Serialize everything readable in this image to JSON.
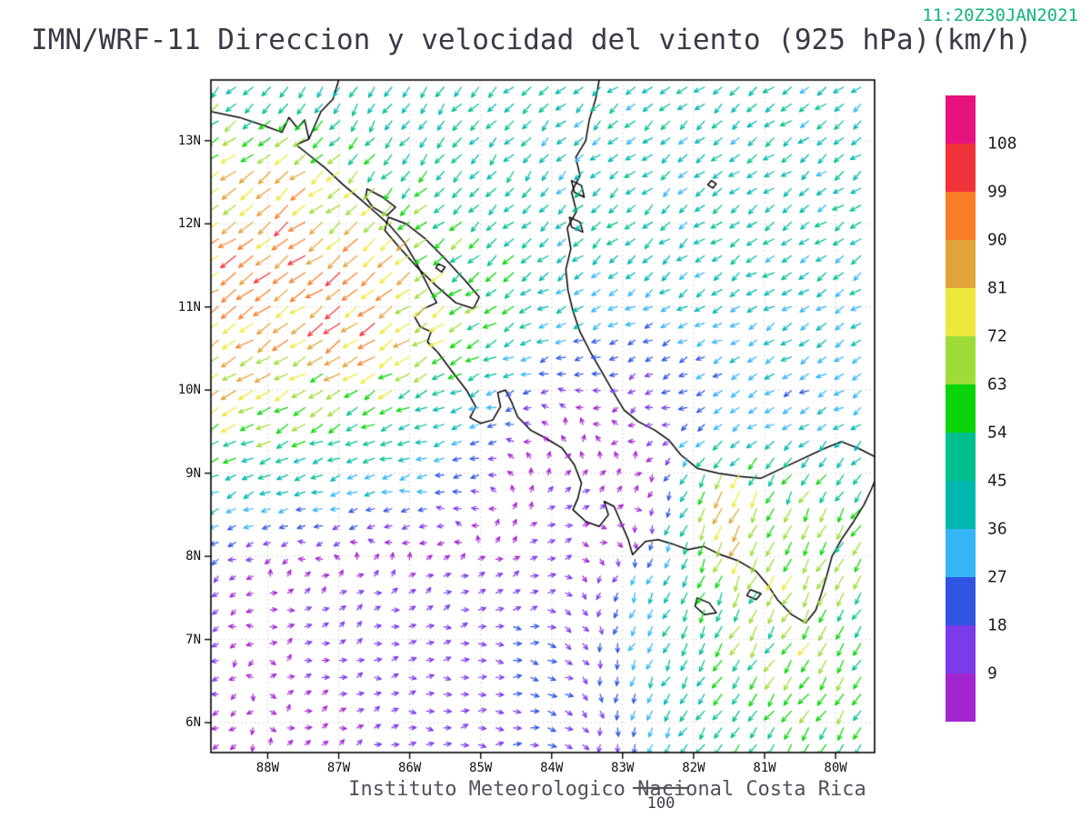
{
  "header": {
    "timestamp": "11:20Z30JAN2021",
    "title": "IMN/WRF-11 Direccion y velocidad del viento (925 hPa)(km/h)"
  },
  "footer": {
    "caption": "Instituto Meteorologico Nacional Costa Rica",
    "reference_label": "100"
  },
  "colors": {
    "timestamp": "#14b37d",
    "title": "#3a3a46",
    "caption": "#51515c",
    "axis_text": "#111111",
    "colorbar_text": "#1c1c1c",
    "reference_text": "#3d3d46",
    "coastline": "#000000",
    "grid_dots": "#c0c0ca",
    "frame": "#000000"
  },
  "chart_data": {
    "type": "vector-field-map",
    "title": "IMN/WRF-11 Direccion y velocidad del viento (925 hPa)(km/h)",
    "timestamp": "11:20Z30JAN2021",
    "level": "925 hPa",
    "units": "km/h",
    "caption": "Instituto Meteorologico Nacional Costa Rica",
    "reference_vector": 100,
    "lon_range": [
      -88.8,
      -79.45
    ],
    "lat_range": [
      5.64,
      13.73
    ],
    "lat_ticks": [
      {
        "label": "13N",
        "value": 13
      },
      {
        "label": "12N",
        "value": 12
      },
      {
        "label": "11N",
        "value": 11
      },
      {
        "label": "10N",
        "value": 10
      },
      {
        "label": "9N",
        "value": 9
      },
      {
        "label": "8N",
        "value": 8
      },
      {
        "label": "7N",
        "value": 7
      },
      {
        "label": "6N",
        "value": 6
      }
    ],
    "lon_ticks": [
      {
        "label": "88W",
        "value": -88
      },
      {
        "label": "87W",
        "value": -87
      },
      {
        "label": "86W",
        "value": -86
      },
      {
        "label": "85W",
        "value": -85
      },
      {
        "label": "84W",
        "value": -84
      },
      {
        "label": "83W",
        "value": -83
      },
      {
        "label": "82W",
        "value": -82
      },
      {
        "label": "81W",
        "value": -81
      },
      {
        "label": "80W",
        "value": -80
      }
    ],
    "colorbar": {
      "labels": [
        108,
        99,
        90,
        81,
        72,
        63,
        54,
        45,
        36,
        27,
        18,
        9
      ],
      "segment_colors_low_to_high": [
        "#a226cf",
        "#7b3be8",
        "#2f55e0",
        "#35b5f5",
        "#00b7ad",
        "#00bf8e",
        "#0ad40a",
        "#9edc3a",
        "#ece93c",
        "#e2a33a",
        "#fa7d28",
        "#f0333a",
        "#e6137e"
      ],
      "bin_width": 9
    },
    "wind_grid": {
      "comment_units": "u,v in km/h, u positive east, v positive north",
      "lons": [
        -88.8,
        -87.6,
        -86.4,
        -85.2,
        -84.0,
        -82.8,
        -81.6,
        -80.4,
        -79.4
      ],
      "lats": [
        13.7,
        12.7,
        11.7,
        10.7,
        9.7,
        8.7,
        7.7,
        6.7,
        5.7
      ],
      "uv": [
        [
          [
            -35,
            -34
          ],
          [
            -20,
            -35
          ],
          [
            -20,
            -38
          ],
          [
            -30,
            -32
          ],
          [
            -30,
            -28
          ],
          [
            -32,
            -26
          ],
          [
            -33,
            -25
          ],
          [
            -34,
            -24
          ],
          [
            -34,
            -24
          ]
        ],
        [
          [
            -55,
            -42
          ],
          [
            -60,
            -46
          ],
          [
            -36,
            -40
          ],
          [
            -28,
            -35
          ],
          [
            -28,
            -30
          ],
          [
            -30,
            -26
          ],
          [
            -32,
            -25
          ],
          [
            -33,
            -24
          ],
          [
            -34,
            -24
          ]
        ],
        [
          [
            -70,
            -50
          ],
          [
            -75,
            -55
          ],
          [
            -65,
            -50
          ],
          [
            -45,
            -35
          ],
          [
            -30,
            -28
          ],
          [
            -32,
            -26
          ],
          [
            -33,
            -25
          ],
          [
            -34,
            -24
          ],
          [
            -34,
            -24
          ]
        ],
        [
          [
            -65,
            -45
          ],
          [
            -72,
            -50
          ],
          [
            -75,
            -52
          ],
          [
            -55,
            -35
          ],
          [
            -35,
            -16
          ],
          [
            -20,
            -10
          ],
          [
            -28,
            -15
          ],
          [
            -32,
            -18
          ],
          [
            -33,
            -20
          ]
        ],
        [
          [
            -60,
            -35
          ],
          [
            -55,
            -30
          ],
          [
            -48,
            -25
          ],
          [
            -35,
            -12
          ],
          [
            -5,
            6
          ],
          [
            -8,
            -4
          ],
          [
            -25,
            -12
          ],
          [
            -25,
            -15
          ],
          [
            -30,
            -18
          ]
        ],
        [
          [
            -35,
            -15
          ],
          [
            -32,
            -10
          ],
          [
            -30,
            -5
          ],
          [
            -18,
            0
          ],
          [
            10,
            8
          ],
          [
            8,
            6
          ],
          [
            -35,
            -75
          ],
          [
            -30,
            -50
          ],
          [
            -30,
            -45
          ]
        ],
        [
          [
            -12,
            -8
          ],
          [
            8,
            5
          ],
          [
            10,
            6
          ],
          [
            12,
            4
          ],
          [
            14,
            4
          ],
          [
            -12,
            -25
          ],
          [
            -25,
            -55
          ],
          [
            -30,
            -60
          ],
          [
            -28,
            -48
          ]
        ],
        [
          [
            -10,
            -6
          ],
          [
            8,
            4
          ],
          [
            12,
            3
          ],
          [
            15,
            2
          ],
          [
            22,
            -5
          ],
          [
            -15,
            -30
          ],
          [
            -30,
            -45
          ],
          [
            -35,
            -50
          ],
          [
            -30,
            -42
          ]
        ],
        [
          [
            -8,
            -5
          ],
          [
            5,
            3
          ],
          [
            10,
            2
          ],
          [
            14,
            0
          ],
          [
            20,
            -4
          ],
          [
            -12,
            -25
          ],
          [
            -28,
            -40
          ],
          [
            -32,
            -45
          ],
          [
            -30,
            -40
          ]
        ]
      ]
    },
    "coast_paths": [
      [
        [
          -88.8,
          13.35
        ],
        [
          -88.4,
          13.28
        ],
        [
          -88.05,
          13.18
        ],
        [
          -87.8,
          13.1
        ],
        [
          -87.7,
          13.28
        ],
        [
          -87.58,
          13.15
        ],
        [
          -87.48,
          13.25
        ],
        [
          -87.42,
          13.02
        ],
        [
          -87.6,
          12.95
        ],
        [
          -87.45,
          12.85
        ],
        [
          -87.2,
          12.68
        ],
        [
          -86.95,
          12.48
        ],
        [
          -86.7,
          12.3
        ],
        [
          -86.5,
          12.15
        ],
        [
          -86.28,
          11.98
        ],
        [
          -86.08,
          11.78
        ],
        [
          -85.92,
          11.55
        ],
        [
          -85.8,
          11.35
        ],
        [
          -85.68,
          11.15
        ],
        [
          -85.62,
          11.05
        ],
        [
          -85.8,
          10.98
        ],
        [
          -85.93,
          10.88
        ],
        [
          -85.85,
          10.76
        ],
        [
          -85.7,
          10.7
        ],
        [
          -85.75,
          10.58
        ],
        [
          -85.6,
          10.45
        ],
        [
          -85.4,
          10.22
        ],
        [
          -85.2,
          10.0
        ],
        [
          -85.07,
          9.8
        ],
        [
          -85.15,
          9.67
        ],
        [
          -85.0,
          9.6
        ],
        [
          -84.83,
          9.64
        ],
        [
          -84.72,
          9.8
        ],
        [
          -84.76,
          9.97
        ],
        [
          -84.65,
          10.0
        ],
        [
          -84.56,
          9.85
        ],
        [
          -84.48,
          9.68
        ],
        [
          -84.3,
          9.52
        ],
        [
          -84.08,
          9.42
        ],
        [
          -83.85,
          9.3
        ],
        [
          -83.68,
          9.1
        ],
        [
          -83.58,
          8.88
        ],
        [
          -83.63,
          8.7
        ],
        [
          -83.7,
          8.56
        ],
        [
          -83.52,
          8.42
        ],
        [
          -83.33,
          8.36
        ],
        [
          -83.2,
          8.5
        ],
        [
          -83.26,
          8.66
        ],
        [
          -83.12,
          8.6
        ],
        [
          -83.02,
          8.4
        ],
        [
          -82.92,
          8.2
        ],
        [
          -82.86,
          8.02
        ],
        [
          -82.68,
          8.18
        ],
        [
          -82.5,
          8.2
        ],
        [
          -82.3,
          8.15
        ],
        [
          -82.08,
          8.08
        ],
        [
          -81.86,
          8.12
        ],
        [
          -81.62,
          8.02
        ],
        [
          -81.38,
          7.95
        ],
        [
          -81.12,
          7.82
        ],
        [
          -80.95,
          7.65
        ],
        [
          -80.82,
          7.48
        ],
        [
          -80.62,
          7.3
        ],
        [
          -80.42,
          7.2
        ],
        [
          -80.28,
          7.35
        ],
        [
          -80.2,
          7.55
        ],
        [
          -80.12,
          7.78
        ],
        [
          -80.05,
          8.0
        ],
        [
          -79.92,
          8.2
        ],
        [
          -79.76,
          8.4
        ],
        [
          -79.6,
          8.62
        ],
        [
          -79.5,
          8.8
        ],
        [
          -79.45,
          8.9
        ]
      ],
      [
        [
          -79.45,
          9.2
        ],
        [
          -79.68,
          9.3
        ],
        [
          -79.92,
          9.38
        ],
        [
          -80.15,
          9.3
        ],
        [
          -80.45,
          9.18
        ],
        [
          -80.75,
          9.06
        ],
        [
          -81.05,
          8.94
        ],
        [
          -81.35,
          8.96
        ],
        [
          -81.65,
          9.0
        ],
        [
          -81.95,
          9.06
        ],
        [
          -82.18,
          9.22
        ],
        [
          -82.35,
          9.4
        ],
        [
          -82.55,
          9.52
        ],
        [
          -82.78,
          9.62
        ],
        [
          -82.98,
          9.76
        ],
        [
          -83.12,
          9.96
        ],
        [
          -83.28,
          10.2
        ],
        [
          -83.45,
          10.45
        ],
        [
          -83.6,
          10.7
        ],
        [
          -83.7,
          10.95
        ],
        [
          -83.77,
          11.2
        ],
        [
          -83.8,
          11.45
        ],
        [
          -83.73,
          11.7
        ],
        [
          -83.78,
          11.95
        ],
        [
          -83.65,
          12.15
        ],
        [
          -83.72,
          12.38
        ],
        [
          -83.6,
          12.58
        ],
        [
          -83.66,
          12.8
        ],
        [
          -83.52,
          13.0
        ],
        [
          -83.47,
          13.25
        ],
        [
          -83.38,
          13.5
        ],
        [
          -83.33,
          13.73
        ]
      ],
      [
        [
          -87.0,
          13.73
        ],
        [
          -87.08,
          13.5
        ],
        [
          -87.25,
          13.35
        ],
        [
          -87.42,
          13.02
        ]
      ]
    ],
    "closed_paths": [
      [
        [
          -86.6,
          12.42
        ],
        [
          -86.38,
          12.32
        ],
        [
          -86.2,
          12.2
        ],
        [
          -86.32,
          12.1
        ],
        [
          -86.52,
          12.2
        ],
        [
          -86.62,
          12.32
        ]
      ],
      [
        [
          -86.3,
          12.08
        ],
        [
          -86.05,
          12.0
        ],
        [
          -85.78,
          11.82
        ],
        [
          -85.5,
          11.58
        ],
        [
          -85.22,
          11.32
        ],
        [
          -85.02,
          11.12
        ],
        [
          -85.1,
          10.98
        ],
        [
          -85.35,
          11.05
        ],
        [
          -85.62,
          11.25
        ],
        [
          -85.9,
          11.48
        ],
        [
          -86.15,
          11.72
        ],
        [
          -86.35,
          11.92
        ]
      ],
      [
        [
          -85.6,
          11.52
        ],
        [
          -85.5,
          11.48
        ],
        [
          -85.55,
          11.42
        ],
        [
          -85.63,
          11.47
        ]
      ],
      [
        [
          -83.72,
          12.52
        ],
        [
          -83.58,
          12.46
        ],
        [
          -83.54,
          12.32
        ],
        [
          -83.68,
          12.38
        ]
      ],
      [
        [
          -83.75,
          12.08
        ],
        [
          -83.6,
          12.02
        ],
        [
          -83.56,
          11.9
        ],
        [
          -83.72,
          11.96
        ]
      ],
      [
        [
          -81.95,
          7.5
        ],
        [
          -81.78,
          7.44
        ],
        [
          -81.68,
          7.32
        ],
        [
          -81.85,
          7.3
        ],
        [
          -81.98,
          7.4
        ]
      ],
      [
        [
          -81.2,
          7.6
        ],
        [
          -81.05,
          7.55
        ],
        [
          -81.12,
          7.48
        ],
        [
          -81.25,
          7.53
        ]
      ],
      [
        [
          -81.75,
          12.52
        ],
        [
          -81.68,
          12.48
        ],
        [
          -81.73,
          12.43
        ],
        [
          -81.8,
          12.47
        ]
      ]
    ]
  }
}
